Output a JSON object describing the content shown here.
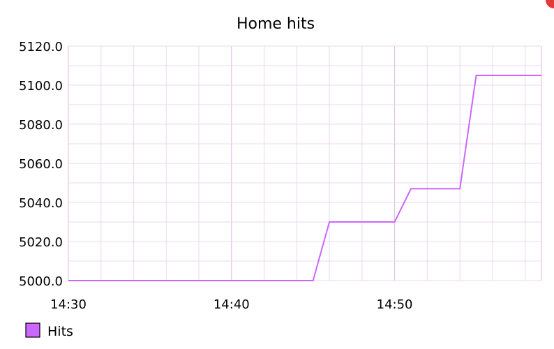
{
  "chart_data": {
    "type": "line",
    "title": "Home hits",
    "xlabel": "",
    "ylabel": "",
    "x_ticks": [
      "14:30",
      "14:40",
      "14:50"
    ],
    "y_ticks": [
      "5000.0",
      "5020.0",
      "5040.0",
      "5060.0",
      "5080.0",
      "5100.0",
      "5120.0"
    ],
    "xlim": [
      "14:30",
      "14:59"
    ],
    "ylim": [
      5000,
      5120
    ],
    "grid": true,
    "legend_position": "bottom-left",
    "series": [
      {
        "name": "Hits",
        "color": "#cc66ff",
        "points": [
          {
            "x": "14:30",
            "y": 5000
          },
          {
            "x": "14:45",
            "y": 5000
          },
          {
            "x": "14:46",
            "y": 5030
          },
          {
            "x": "14:50",
            "y": 5030
          },
          {
            "x": "14:51",
            "y": 5047
          },
          {
            "x": "14:54",
            "y": 5047
          },
          {
            "x": "14:55",
            "y": 5105
          },
          {
            "x": "14:59",
            "y": 5105
          }
        ]
      }
    ]
  },
  "colors": {
    "line": "#cc66ff",
    "grid_minor": "#ecd7ec",
    "grid_major": "#dcbadc",
    "legend_fill": "#cc66ff",
    "corner_accent": "#e23a3a"
  }
}
